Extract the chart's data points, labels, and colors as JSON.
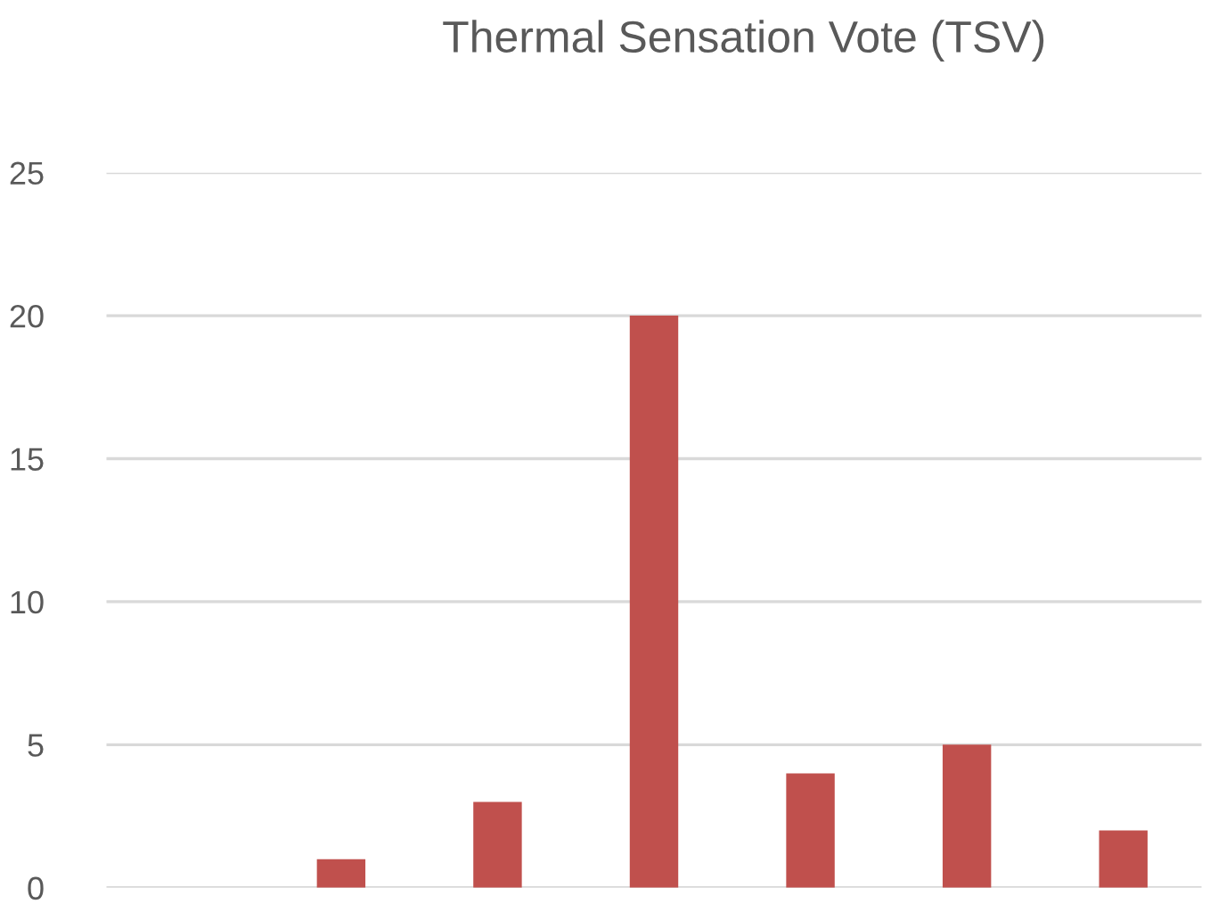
{
  "chart_data": {
    "type": "bar",
    "title": "Thermal Sensation Vote (TSV)",
    "categories": [
      null,
      null,
      null,
      null,
      null,
      null,
      null
    ],
    "values": [
      0,
      1,
      3,
      20,
      4,
      5,
      2
    ],
    "color": "#c0504d",
    "ylim": [
      0,
      25
    ],
    "yticks": [
      0,
      5,
      10,
      15,
      20,
      25
    ],
    "grid": "y",
    "tick_labels": "y"
  }
}
